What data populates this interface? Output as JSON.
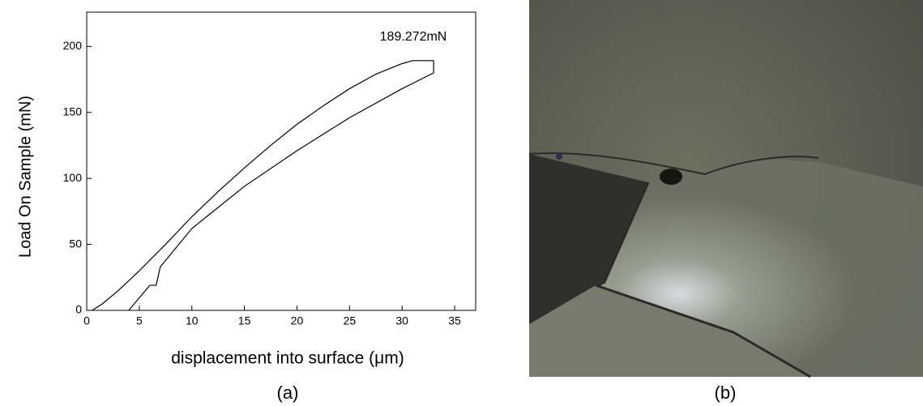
{
  "chart_data": {
    "type": "line",
    "annotation": "189.272mN",
    "x_label": "displacement into surface (μm)",
    "y_label": "Load On Sample (mN)",
    "xlim": [
      0,
      37
    ],
    "ylim": [
      0,
      226
    ],
    "xticks": [
      0,
      5,
      10,
      15,
      20,
      25,
      30,
      35
    ],
    "yticks": [
      0,
      50,
      100,
      150,
      200
    ],
    "series": [
      {
        "color": "#000000",
        "x": [
          0.5,
          1.5,
          3,
          5,
          7.5,
          10,
          12.5,
          15,
          17.5,
          20,
          22.5,
          25,
          27.5,
          30,
          31,
          33,
          33,
          30,
          25,
          20,
          15,
          10,
          7,
          6.6,
          6,
          4
        ],
        "values": [
          0,
          5,
          15,
          30,
          50,
          71,
          90,
          108,
          125,
          141,
          155,
          168,
          179,
          187,
          189.272,
          189.272,
          180,
          168,
          146,
          121,
          94,
          62,
          33,
          19,
          19,
          0
        ]
      }
    ]
  },
  "captions": [
    "(a)",
    "(b)"
  ]
}
